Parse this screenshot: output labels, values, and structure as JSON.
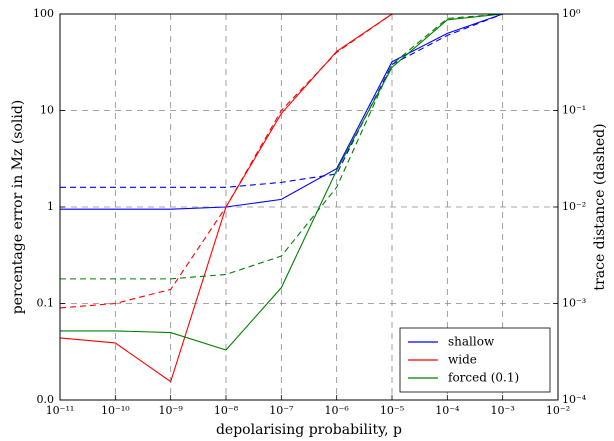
{
  "chart_data": {
    "type": "line",
    "x_label": "depolarising probability, p",
    "y_label": "percentage error in Mz (solid)",
    "y2_label": "trace distance (dashed)",
    "x": [
      1e-11,
      1e-10,
      1e-09,
      1e-08,
      1e-07,
      1e-06,
      1e-05,
      0.0001,
      0.001,
      0.01
    ],
    "xscale": "log",
    "yscale": "log",
    "y2scale": "log",
    "xlim": [
      1e-11,
      0.01
    ],
    "xticks": [
      {
        "value": 1e-11,
        "label": "10⁻¹¹"
      },
      {
        "value": 1e-10,
        "label": "10⁻¹⁰"
      },
      {
        "value": 1e-09,
        "label": "10⁻⁹"
      },
      {
        "value": 1e-08,
        "label": "10⁻⁸"
      },
      {
        "value": 1e-07,
        "label": "10⁻⁷"
      },
      {
        "value": 1e-06,
        "label": "10⁻⁶"
      },
      {
        "value": 1e-05,
        "label": "10⁻⁵"
      },
      {
        "value": 0.0001,
        "label": "10⁻⁴"
      },
      {
        "value": 0.001,
        "label": "10⁻³"
      },
      {
        "value": 0.01,
        "label": "10⁻²"
      }
    ],
    "ylim": [
      0.01,
      100
    ],
    "yticks": [
      {
        "value": 0.01,
        "label": "0.0"
      },
      0.1,
      1,
      10,
      100
    ],
    "y2lim": [
      0.0001,
      1
    ],
    "y2ticks": [
      {
        "value": 0.0001,
        "label": "10⁻⁴"
      },
      {
        "value": 0.001,
        "label": "10⁻³"
      },
      {
        "value": 0.01,
        "label": "10⁻²"
      },
      {
        "value": 0.1,
        "label": "10⁻¹"
      },
      {
        "value": 1,
        "label": "10⁰"
      }
    ],
    "grid": true,
    "legend_position": "lower right",
    "series": [
      {
        "name": "shallow",
        "color": "#0000ff",
        "values": [
          0.95,
          0.95,
          0.95,
          1.0,
          1.2,
          2.5,
          32,
          63,
          100,
          100
        ],
        "y2_values": [
          0.016,
          0.016,
          0.016,
          0.016,
          0.018,
          0.022,
          0.3,
          0.6,
          1,
          1
        ]
      },
      {
        "name": "wide",
        "color": "#ff0000",
        "values": [
          0.044,
          0.039,
          0.0155,
          1,
          9.3,
          41,
          100,
          100,
          100,
          100
        ],
        "y2_values": [
          0.0009,
          0.001,
          0.0014,
          0.01,
          0.1,
          0.4,
          1,
          1,
          1,
          1
        ]
      },
      {
        "name": "forced (0.1)",
        "color": "#008000",
        "values": [
          0.052,
          0.052,
          0.05,
          0.033,
          0.146,
          2.4,
          28,
          87,
          100,
          100
        ],
        "y2_values": [
          0.0018,
          0.0018,
          0.0018,
          0.002,
          0.0031,
          0.016,
          0.3,
          0.9,
          1,
          1
        ]
      }
    ]
  }
}
